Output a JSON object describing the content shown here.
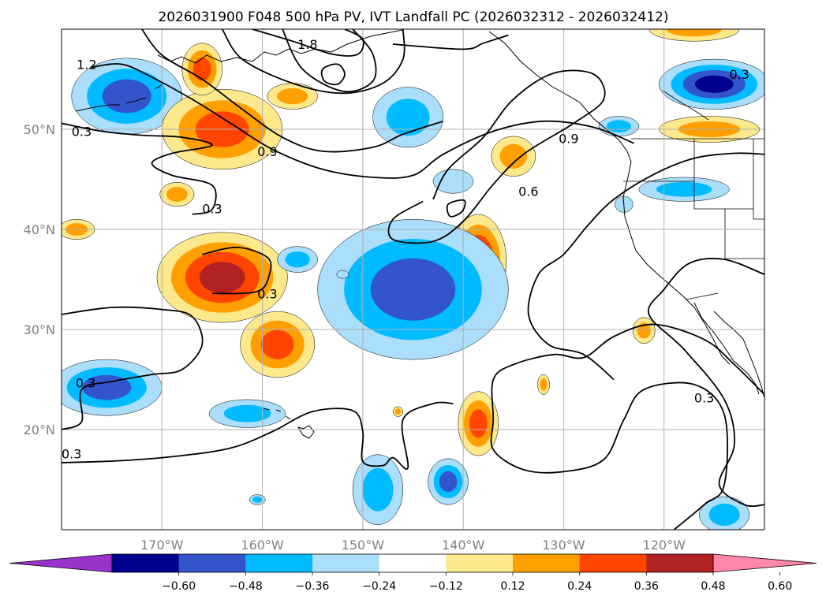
{
  "title": "2026031900 F048 500 hPa PV, IVT Landfall PC (2026032312 - 2026032412)",
  "map": {
    "lon_range": [
      -180,
      -110
    ],
    "lat_range": [
      10,
      60
    ],
    "gridline_color": "#b0b0b0",
    "lon_ticks": [
      {
        "lon": -170,
        "label": "170°W"
      },
      {
        "lon": -160,
        "label": "160°W"
      },
      {
        "lon": -150,
        "label": "150°W"
      },
      {
        "lon": -140,
        "label": "140°W"
      },
      {
        "lon": -130,
        "label": "130°W"
      },
      {
        "lon": -120,
        "label": "120°W"
      }
    ],
    "lat_ticks": [
      {
        "lat": 20,
        "label": "20°N"
      },
      {
        "lat": 30,
        "label": "30°N"
      },
      {
        "lat": 40,
        "label": "40°N"
      },
      {
        "lat": 50,
        "label": "50°N"
      }
    ]
  },
  "colorbar": {
    "colors": [
      "#9933cc",
      "#000090",
      "#3355cc",
      "#00bbff",
      "#aadefa",
      "#ffffff",
      "#fde98c",
      "#ffa000",
      "#ff4500",
      "#b22222",
      "#ff88aa"
    ],
    "tick_labels": [
      "−0.60",
      "−0.48",
      "−0.36",
      "−0.24",
      "−0.12",
      "0.12",
      "0.24",
      "0.36",
      "0.48",
      "0.60"
    ]
  },
  "contour_labels": [
    {
      "text": "1.2",
      "lon": -177.5,
      "lat": 56.5
    },
    {
      "text": "1.8",
      "lon": -155.5,
      "lat": 58.5
    },
    {
      "text": "0.3",
      "lon": -112.5,
      "lat": 55.5
    },
    {
      "text": "0.3",
      "lon": -178.0,
      "lat": 49.8
    },
    {
      "text": "0.9",
      "lon": -159.5,
      "lat": 47.8
    },
    {
      "text": "0.9",
      "lon": -129.5,
      "lat": 49.1
    },
    {
      "text": "0.6",
      "lon": -133.5,
      "lat": 43.8
    },
    {
      "text": "0.3",
      "lon": -165.0,
      "lat": 42.1
    },
    {
      "text": "0.3",
      "lon": -159.5,
      "lat": 33.6
    },
    {
      "text": "0.3",
      "lon": -177.6,
      "lat": 24.7
    },
    {
      "text": "0.3",
      "lon": -116.0,
      "lat": 23.2
    },
    {
      "text": "0.3",
      "lon": -179.0,
      "lat": 17.6
    }
  ],
  "pv_anomalies": [
    {
      "lon": -173.5,
      "lat": 53.3,
      "rx": 5.5,
      "ry": 3.8,
      "sign": -1,
      "levels": 3
    },
    {
      "lon": -164.0,
      "lat": 50.0,
      "rx": 6.0,
      "ry": 4.0,
      "sign": 1,
      "levels": 3
    },
    {
      "lon": -166.0,
      "lat": 56.0,
      "rx": 2.0,
      "ry": 2.6,
      "sign": 1,
      "levels": 3
    },
    {
      "lon": -157.0,
      "lat": 53.3,
      "rx": 2.5,
      "ry": 1.3,
      "sign": 1,
      "levels": 2
    },
    {
      "lon": -145.5,
      "lat": 51.2,
      "rx": 3.5,
      "ry": 3.0,
      "sign": -1,
      "levels": 2
    },
    {
      "lon": -141.0,
      "lat": 44.8,
      "rx": 2.0,
      "ry": 1.2,
      "sign": -1,
      "levels": 1
    },
    {
      "lon": -135.0,
      "lat": 47.3,
      "rx": 2.2,
      "ry": 2.0,
      "sign": 1,
      "levels": 2
    },
    {
      "lon": -138.5,
      "lat": 36.8,
      "rx": 2.8,
      "ry": 4.7,
      "sign": 1,
      "levels": 4
    },
    {
      "lon": -145.0,
      "lat": 34.0,
      "rx": 9.5,
      "ry": 7.0,
      "sign": -1,
      "levels": 3
    },
    {
      "lon": -164.0,
      "lat": 35.2,
      "rx": 6.5,
      "ry": 4.5,
      "sign": 1,
      "levels": 4
    },
    {
      "lon": -156.5,
      "lat": 37.0,
      "rx": 2.0,
      "ry": 1.3,
      "sign": -1,
      "levels": 2
    },
    {
      "lon": -158.5,
      "lat": 28.5,
      "rx": 3.7,
      "ry": 3.3,
      "sign": 1,
      "levels": 3
    },
    {
      "lon": -175.5,
      "lat": 24.2,
      "rx": 5.5,
      "ry": 2.8,
      "sign": -1,
      "levels": 3
    },
    {
      "lon": -161.5,
      "lat": 21.6,
      "rx": 3.8,
      "ry": 1.4,
      "sign": -1,
      "levels": 2
    },
    {
      "lon": -138.5,
      "lat": 20.6,
      "rx": 2.0,
      "ry": 3.2,
      "sign": 1,
      "levels": 3
    },
    {
      "lon": -148.5,
      "lat": 14.0,
      "rx": 2.5,
      "ry": 3.5,
      "sign": -1,
      "levels": 2
    },
    {
      "lon": -141.5,
      "lat": 14.8,
      "rx": 2.0,
      "ry": 2.3,
      "sign": -1,
      "levels": 3
    },
    {
      "lon": -115.0,
      "lat": 54.5,
      "rx": 5.5,
      "ry": 2.5,
      "sign": -1,
      "levels": 4
    },
    {
      "lon": -115.5,
      "lat": 50.0,
      "rx": 5.0,
      "ry": 1.3,
      "sign": 1,
      "levels": 2
    },
    {
      "lon": -118.0,
      "lat": 44.0,
      "rx": 4.5,
      "ry": 1.2,
      "sign": -1,
      "levels": 2
    },
    {
      "lon": -124.5,
      "lat": 50.3,
      "rx": 2.0,
      "ry": 1.0,
      "sign": -1,
      "levels": 2
    },
    {
      "lon": -117.0,
      "lat": 60.0,
      "rx": 4.5,
      "ry": 1.2,
      "sign": 1,
      "levels": 2
    },
    {
      "lon": -124.0,
      "lat": 42.5,
      "rx": 0.9,
      "ry": 0.8,
      "sign": -1,
      "levels": 1
    },
    {
      "lon": -122.0,
      "lat": 29.9,
      "rx": 1.1,
      "ry": 1.3,
      "sign": 1,
      "levels": 2
    },
    {
      "lon": -132.0,
      "lat": 24.5,
      "rx": 0.6,
      "ry": 1.0,
      "sign": 1,
      "levels": 2
    },
    {
      "lon": -178.5,
      "lat": 40.0,
      "rx": 1.8,
      "ry": 1.0,
      "sign": 1,
      "levels": 2
    },
    {
      "lon": -168.5,
      "lat": 43.5,
      "rx": 1.7,
      "ry": 1.2,
      "sign": 1,
      "levels": 2
    },
    {
      "lon": -146.5,
      "lat": 21.8,
      "rx": 0.5,
      "ry": 0.5,
      "sign": 1,
      "levels": 2
    },
    {
      "lon": -152.0,
      "lat": 35.5,
      "rx": 0.6,
      "ry": 0.4,
      "sign": -1,
      "levels": 1
    },
    {
      "lon": -160.5,
      "lat": 13.0,
      "rx": 0.8,
      "ry": 0.5,
      "sign": -1,
      "levels": 2
    },
    {
      "lon": -114.0,
      "lat": 11.5,
      "rx": 2.5,
      "ry": 1.8,
      "sign": -1,
      "levels": 2
    }
  ],
  "ivt_contours": [
    {
      "closed": false,
      "pts": [
        [
          -180,
          50.6
        ],
        [
          -176,
          49.8
        ],
        [
          -172,
          49.4
        ],
        [
          -168,
          49.2
        ],
        [
          -165,
          48.4
        ],
        [
          -169,
          47.6
        ],
        [
          -171,
          46.6
        ],
        [
          -169,
          45.4
        ],
        [
          -165,
          44.4
        ],
        [
          -165,
          42.0
        ],
        [
          -167,
          41.5
        ]
      ]
    },
    {
      "closed": false,
      "pts": [
        [
          -177,
          56.2
        ],
        [
          -174,
          56.5
        ],
        [
          -171,
          55.2
        ],
        [
          -167,
          53.0
        ],
        [
          -163,
          50.5
        ],
        [
          -159,
          48.0
        ],
        [
          -154,
          46.0
        ],
        [
          -149,
          45.2
        ],
        [
          -145,
          45.4
        ],
        [
          -142,
          47.5
        ],
        [
          -137,
          49.8
        ],
        [
          -132,
          50.8
        ],
        [
          -127,
          50.2
        ],
        [
          -123,
          48.6
        ]
      ]
    },
    {
      "closed": false,
      "pts": [
        [
          -172,
          60
        ],
        [
          -170,
          57.4
        ],
        [
          -166,
          55.0
        ],
        [
          -162,
          52.0
        ],
        [
          -158,
          49.2
        ],
        [
          -154,
          47.8
        ],
        [
          -149,
          48.2
        ],
        [
          -146,
          49.5
        ],
        [
          -142,
          50.8
        ]
      ]
    },
    {
      "closed": false,
      "pts": [
        [
          -164,
          60
        ],
        [
          -162,
          57.0
        ],
        [
          -157,
          54.6
        ],
        [
          -152,
          53.6
        ],
        [
          -148,
          54.6
        ],
        [
          -146,
          57.0
        ],
        [
          -146,
          60
        ]
      ]
    },
    {
      "closed": false,
      "pts": [
        [
          -158,
          60
        ],
        [
          -156,
          56.0
        ],
        [
          -152,
          53.8
        ],
        [
          -149,
          54.8
        ],
        [
          -149,
          57.5
        ],
        [
          -151,
          60
        ]
      ]
    },
    {
      "closed": true,
      "pts": [
        [
          -154,
          56.0
        ],
        [
          -152.5,
          56.5
        ],
        [
          -151.8,
          55.5
        ],
        [
          -152.5,
          54.5
        ],
        [
          -153.8,
          54.8
        ]
      ]
    },
    {
      "closed": false,
      "pts": [
        [
          -161,
          60
        ],
        [
          -157,
          58.8
        ],
        [
          -153,
          57.5
        ],
        [
          -150.5,
          57.5
        ],
        [
          -150,
          59.0
        ],
        [
          -151.8,
          60
        ]
      ]
    },
    {
      "closed": false,
      "pts": [
        [
          -147,
          58.5
        ],
        [
          -140,
          58.0
        ],
        [
          -138,
          58.6
        ],
        [
          -135.5,
          59.4
        ]
      ]
    },
    {
      "closed": false,
      "pts": [
        [
          -143,
          43.0
        ],
        [
          -141.5,
          46.0
        ],
        [
          -138,
          49.2
        ],
        [
          -135,
          53.0
        ],
        [
          -131,
          55.6
        ],
        [
          -127,
          55.5
        ],
        [
          -126,
          53.0
        ],
        [
          -129,
          50.6
        ],
        [
          -134,
          47.5
        ],
        [
          -137,
          44.5
        ],
        [
          -140,
          40.8
        ],
        [
          -143,
          38.8
        ],
        [
          -147,
          39.0
        ],
        [
          -147,
          41.0
        ],
        [
          -144,
          42.8
        ]
      ]
    },
    {
      "closed": true,
      "pts": [
        [
          -141.5,
          42.5
        ],
        [
          -139.9,
          42.9
        ],
        [
          -140.1,
          41.8
        ],
        [
          -141.3,
          41.3
        ]
      ]
    },
    {
      "closed": false,
      "pts": [
        [
          -166,
          37.5
        ],
        [
          -162.5,
          38.2
        ],
        [
          -159.5,
          37.2
        ],
        [
          -159.3,
          35.5
        ],
        [
          -160.5,
          33.8
        ],
        [
          -165,
          33.6
        ]
      ]
    },
    {
      "closed": false,
      "pts": [
        [
          -180,
          31.5
        ],
        [
          -175,
          32.2
        ],
        [
          -170,
          32.0
        ],
        [
          -167,
          31.3
        ],
        [
          -166,
          28.5
        ],
        [
          -168,
          26.0
        ],
        [
          -171,
          25.5
        ],
        [
          -175,
          24.8
        ],
        [
          -178,
          24.0
        ],
        [
          -178,
          20.8
        ],
        [
          -180,
          20.0
        ]
      ]
    },
    {
      "closed": false,
      "pts": [
        [
          -180,
          16.7
        ],
        [
          -174,
          16.9
        ],
        [
          -168,
          17.4
        ],
        [
          -163,
          18.2
        ],
        [
          -159,
          19.8
        ],
        [
          -155,
          21.8
        ],
        [
          -151,
          21.9
        ],
        [
          -150,
          19.8
        ],
        [
          -150,
          16.8
        ],
        [
          -148,
          16.4
        ],
        [
          -147,
          17.2
        ],
        [
          -145.5,
          16.2
        ],
        [
          -146.0,
          21.0
        ],
        [
          -143,
          22.6
        ],
        [
          -141,
          22.6
        ]
      ]
    },
    {
      "closed": false,
      "pts": [
        [
          -110,
          23.5
        ],
        [
          -113,
          26.5
        ],
        [
          -116,
          29.0
        ],
        [
          -121,
          30.5
        ],
        [
          -125,
          29.3
        ],
        [
          -128,
          27.2
        ],
        [
          -131,
          27.5
        ],
        [
          -135,
          26.5
        ],
        [
          -137,
          25.0
        ],
        [
          -137,
          21.0
        ],
        [
          -137,
          18.0
        ],
        [
          -134,
          16.0
        ],
        [
          -130,
          15.8
        ],
        [
          -126,
          17.0
        ],
        [
          -124,
          21.0
        ],
        [
          -122,
          24.0
        ],
        [
          -117,
          24.5
        ],
        [
          -114,
          21.5
        ],
        [
          -114,
          14.5
        ],
        [
          -116,
          12.5
        ],
        [
          -119,
          10
        ]
      ]
    },
    {
      "closed": false,
      "pts": [
        [
          -110,
          35.5
        ],
        [
          -114,
          37.0
        ],
        [
          -117.5,
          36.6
        ],
        [
          -120,
          34.0
        ],
        [
          -121.5,
          31.5
        ],
        [
          -118,
          28.0
        ],
        [
          -114,
          23.0
        ],
        [
          -113,
          18.5
        ],
        [
          -114.5,
          14.5
        ],
        [
          -112,
          12.5
        ],
        [
          -110,
          12.5
        ]
      ]
    },
    {
      "closed": false,
      "pts": [
        [
          -110,
          47.5
        ],
        [
          -113,
          47.6
        ],
        [
          -117,
          47.1
        ],
        [
          -121,
          45.5
        ],
        [
          -125,
          43.0
        ],
        [
          -127.5,
          40.5
        ],
        [
          -130,
          37.5
        ],
        [
          -132.5,
          35.5
        ],
        [
          -133.5,
          31.5
        ],
        [
          -131.5,
          28.5
        ],
        [
          -128,
          27.5
        ],
        [
          -125,
          25.0
        ]
      ]
    }
  ]
}
